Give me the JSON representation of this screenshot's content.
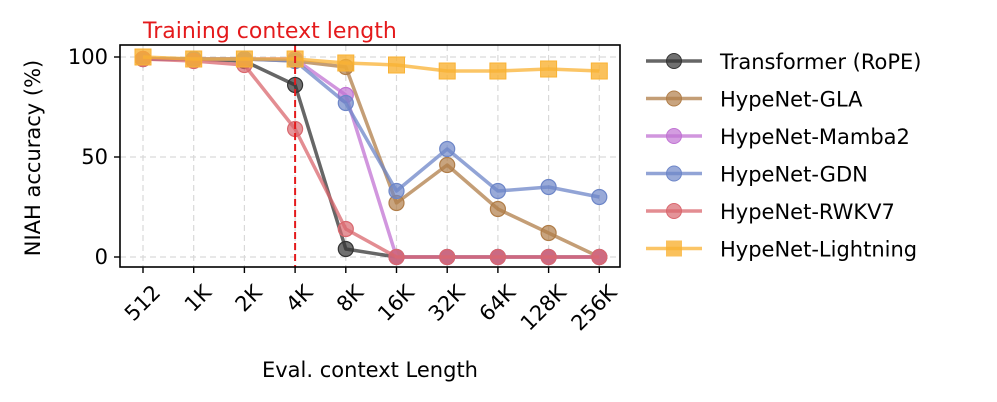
{
  "chart_data": {
    "type": "line",
    "annotation": {
      "text": "Training context length",
      "at_category": "4K",
      "color": "#e41a1c"
    },
    "xlabel": "Eval. context Length",
    "ylabel": "NIAH accuracy (%)",
    "categories": [
      "512",
      "1K",
      "2K",
      "4K",
      "8K",
      "16K",
      "32K",
      "64K",
      "128K",
      "256K"
    ],
    "yticks": [
      0,
      50,
      100
    ],
    "ylim": [
      -5,
      105
    ],
    "grid": true,
    "legend_position": "outside-right",
    "series": [
      {
        "name": "Transformer (RoPE)",
        "color": "#333333",
        "marker": "circle",
        "values": [
          99,
          99,
          98,
          86,
          4,
          0,
          0,
          0,
          0,
          0
        ]
      },
      {
        "name": "HypeNet-GLA",
        "color": "#b07d48",
        "marker": "circle",
        "values": [
          99,
          99,
          99,
          98,
          95,
          27,
          46,
          24,
          12,
          0
        ]
      },
      {
        "name": "HypeNet-Mamba2",
        "color": "#c173d3",
        "marker": "circle",
        "values": [
          99,
          99,
          99,
          99,
          81,
          0,
          0,
          0,
          0,
          0
        ]
      },
      {
        "name": "HypeNet-GDN",
        "color": "#6d86c8",
        "marker": "circle",
        "values": [
          99,
          99,
          99,
          98,
          77,
          33,
          54,
          33,
          35,
          30
        ]
      },
      {
        "name": "HypeNet-RWKV7",
        "color": "#d9676e",
        "marker": "circle",
        "values": [
          99,
          98,
          96,
          64,
          14,
          0,
          0,
          0,
          0,
          0
        ]
      },
      {
        "name": "HypeNet-Lightning",
        "color": "#f9b233",
        "marker": "square",
        "values": [
          100,
          99,
          99,
          99,
          97,
          96,
          93,
          93,
          94,
          93
        ]
      }
    ]
  }
}
